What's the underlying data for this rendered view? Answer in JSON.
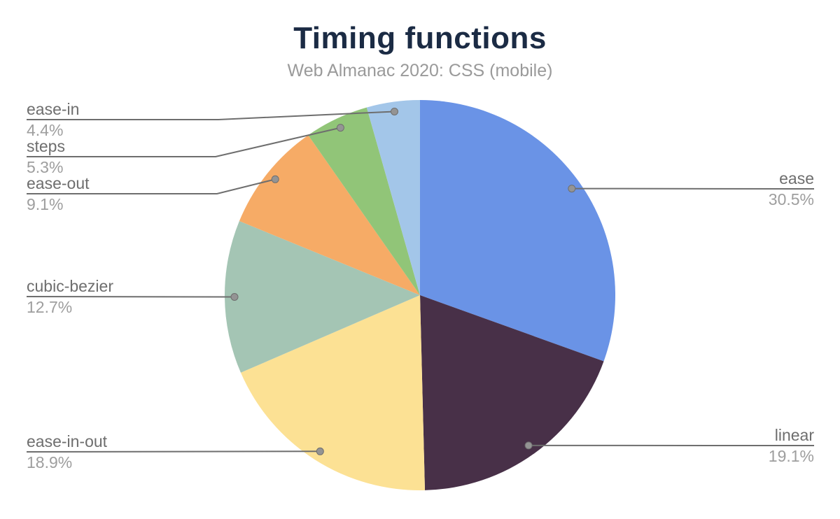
{
  "header": {
    "title": "Timing functions",
    "subtitle": "Web Almanac 2020: CSS (mobile)"
  },
  "chart_data": {
    "type": "pie",
    "title": "Timing functions",
    "subtitle": "Web Almanac 2020: CSS (mobile)",
    "unit": "%",
    "start_angle_deg": 0,
    "direction": "clockwise",
    "legend_position": "none",
    "slices": [
      {
        "label": "ease",
        "value": 30.5,
        "pct_label": "30.5%",
        "color": "#6a93e6",
        "label_side": "right"
      },
      {
        "label": "linear",
        "value": 19.1,
        "pct_label": "19.1%",
        "color": "#483048",
        "label_side": "right"
      },
      {
        "label": "ease-in-out",
        "value": 18.9,
        "pct_label": "18.9%",
        "color": "#fce194",
        "label_side": "left"
      },
      {
        "label": "cubic-bezier",
        "value": 12.7,
        "pct_label": "12.7%",
        "color": "#a4c5b4",
        "label_side": "left"
      },
      {
        "label": "ease-out",
        "value": 9.1,
        "pct_label": "9.1%",
        "color": "#f6ab66",
        "label_side": "left"
      },
      {
        "label": "steps",
        "value": 5.3,
        "pct_label": "5.3%",
        "color": "#91c578",
        "label_side": "left"
      },
      {
        "label": "ease-in",
        "value": 4.4,
        "pct_label": "4.4%",
        "color": "#a3c6e9",
        "label_side": "left"
      }
    ],
    "style": {
      "title_color": "#1b2b44",
      "subtitle_color": "#9a9a9a",
      "label_name_color": "#6e6e6e",
      "label_pct_color": "#9e9e9e",
      "leader_line_color": "#6e6e6e",
      "leader_dot_color": "#949494",
      "background": "#ffffff"
    }
  }
}
